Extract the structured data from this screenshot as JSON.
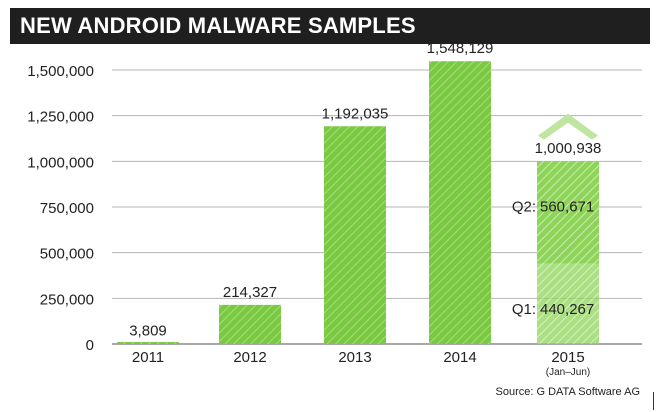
{
  "chart_data": {
    "type": "bar",
    "title": "NEW ANDROID MALWARE SAMPLES",
    "categories": [
      "2011",
      "2012",
      "2013",
      "2014",
      "2015"
    ],
    "category_sublabels": [
      "",
      "",
      "",
      "",
      "(Jan–Jun)"
    ],
    "values": [
      3809,
      214327,
      1192035,
      1548129,
      1000938
    ],
    "value_labels": [
      "3,809",
      "214,327",
      "1,192,035",
      "1,548,129",
      "1,000,938"
    ],
    "stacked_2015": {
      "q1": 440267,
      "q2": 560671,
      "q1_label": "Q1:",
      "q1_value": "440,267",
      "q2_label": "Q2:",
      "q2_value": "560,671"
    },
    "ylim": [
      0,
      1500000
    ],
    "yticks": [
      0,
      250000,
      500000,
      750000,
      1000000,
      1250000,
      1500000
    ],
    "ytick_labels": [
      "0",
      "250,000",
      "500,000",
      "750,000",
      "1,000,000",
      "1,250,000",
      "1,500,000"
    ],
    "grid": true,
    "source": "Source: G DATA Software AG",
    "colors": {
      "bar": "#7ac943",
      "bar_light": "#a9dc78",
      "bar_2015": "#8fd45a",
      "bar_2015_light": "#c9ecaa",
      "arrow": "#bfe6a0",
      "grid": "#b5b5b5",
      "title_bg": "#1f1f1f",
      "title_fg": "#ffffff"
    }
  }
}
